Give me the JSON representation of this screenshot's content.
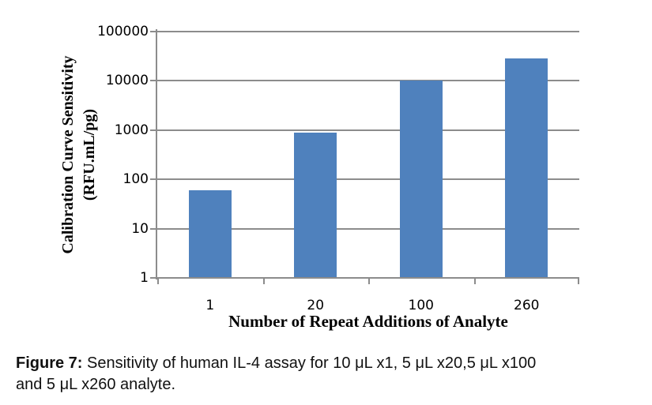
{
  "chart_data": {
    "type": "bar",
    "title": "",
    "categories": [
      "1",
      "20",
      "100",
      "260"
    ],
    "values": [
      60,
      900,
      10000,
      28000
    ],
    "series": [
      {
        "name": "Calibration Curve Sensitivity",
        "values": [
          60,
          900,
          10000,
          28000
        ]
      }
    ],
    "xlabel": "Number of Repeat Additions of Analyte",
    "ylabel_line1": "Calibration Curve Sensitivity",
    "ylabel_line2": "(RFU.mL/pg)",
    "y_scale": "log",
    "ylim": [
      1,
      100000
    ],
    "y_ticks": [
      1,
      10,
      100,
      1000,
      10000,
      100000
    ],
    "grid": true,
    "legend_position": "none",
    "bar_color": "#4F81BD",
    "axis_color": "#8C8C8C"
  },
  "caption": {
    "prefix": "Figure 7:",
    "line1": "Sensitivity of human IL-4 assay for 10 μL x1, 5 μL x20,5 μL x100",
    "line2": "and 5 μL x260 analyte."
  }
}
